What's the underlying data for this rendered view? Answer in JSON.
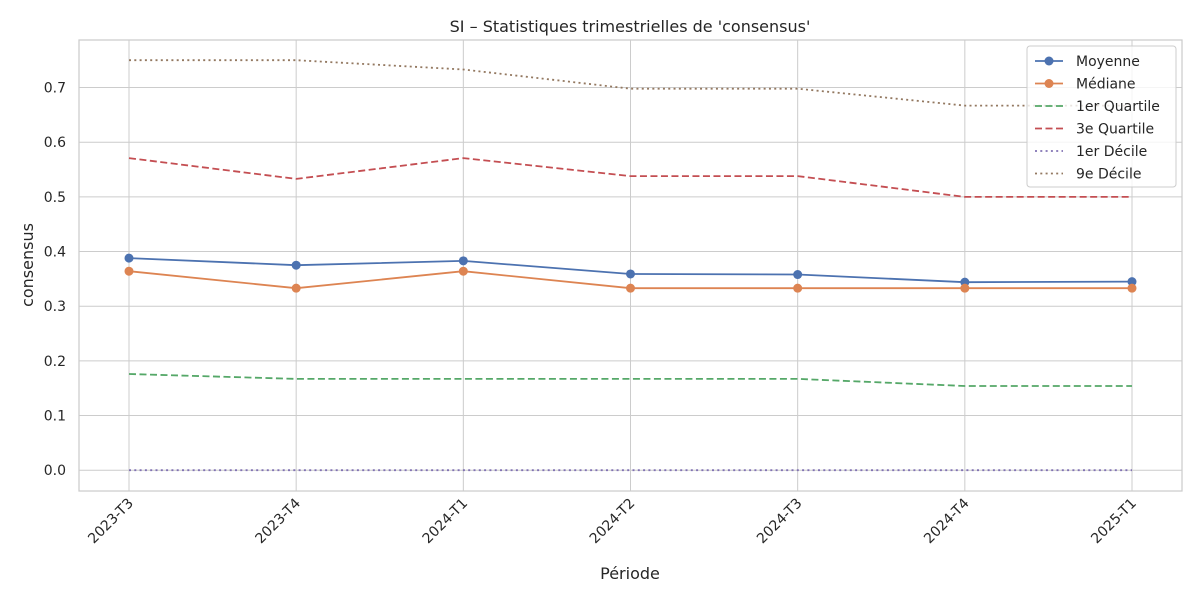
{
  "chart_data": {
    "type": "line",
    "title": "SI – Statistiques trimestrielles de 'consensus'",
    "xlabel": "Période",
    "ylabel": "consensus",
    "categories": [
      "2023-T3",
      "2023-T4",
      "2024-T1",
      "2024-T2",
      "2024-T3",
      "2024-T4",
      "2025-T1"
    ],
    "ylim": [
      -0.038,
      0.787
    ],
    "yticks": [
      "0.0",
      "0.1",
      "0.2",
      "0.3",
      "0.4",
      "0.5",
      "0.6",
      "0.7"
    ],
    "grid": true,
    "legend_position": "top-right",
    "series": [
      {
        "name": "Moyenne",
        "values": [
          0.388,
          0.375,
          0.383,
          0.359,
          0.358,
          0.344,
          0.345
        ],
        "color": "#4c72b0",
        "style": "solid",
        "marker": true
      },
      {
        "name": "Médiane",
        "values": [
          0.364,
          0.333,
          0.364,
          0.333,
          0.333,
          0.333,
          0.333
        ],
        "color": "#dd8452",
        "style": "solid",
        "marker": true
      },
      {
        "name": "1er Quartile",
        "values": [
          0.176,
          0.167,
          0.167,
          0.167,
          0.167,
          0.154,
          0.154
        ],
        "color": "#55a868",
        "style": "dashed",
        "marker": false
      },
      {
        "name": "3e Quartile",
        "values": [
          0.571,
          0.533,
          0.571,
          0.538,
          0.538,
          0.5,
          0.5
        ],
        "color": "#c44e52",
        "style": "dashed",
        "marker": false
      },
      {
        "name": "1er Décile",
        "values": [
          0.0,
          0.0,
          0.0,
          0.0,
          0.0,
          0.0,
          0.0
        ],
        "color": "#8172b3",
        "style": "dotted",
        "marker": false
      },
      {
        "name": "9e Décile",
        "values": [
          0.75,
          0.75,
          0.733,
          0.698,
          0.698,
          0.667,
          0.667
        ],
        "color": "#937860",
        "style": "dotted",
        "marker": false
      }
    ]
  }
}
